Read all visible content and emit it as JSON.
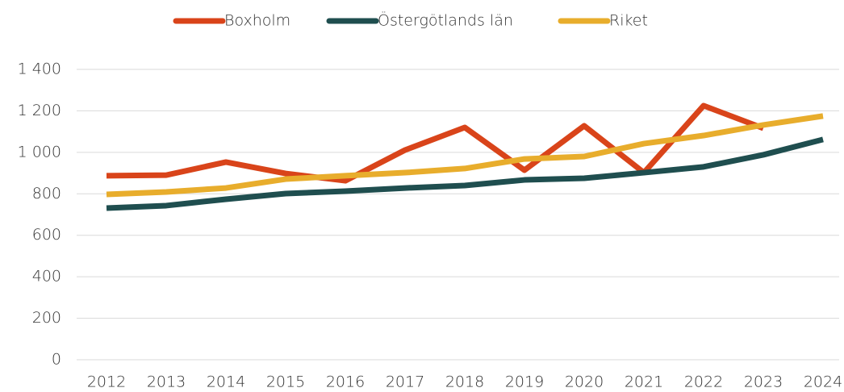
{
  "chart_data": {
    "type": "line",
    "x": [
      "2012",
      "2013",
      "2014",
      "2015",
      "2016",
      "2017",
      "2018",
      "2019",
      "2020",
      "2021",
      "2022",
      "2023",
      "2024"
    ],
    "series": [
      {
        "name": "Boxholm",
        "color": "#d9441a",
        "values": [
          887,
          890,
          953,
          898,
          863,
          1011,
          1120,
          914,
          1128,
          902,
          1225,
          1116,
          null
        ]
      },
      {
        "name": "Östergötlands län",
        "color": "#1f4e4f",
        "values": [
          731,
          743,
          774,
          801,
          813,
          828,
          840,
          867,
          875,
          902,
          930,
          988,
          1062
        ]
      },
      {
        "name": "Riket",
        "color": "#e8ad2c",
        "values": [
          797,
          809,
          828,
          871,
          887,
          902,
          922,
          968,
          980,
          1042,
          1081,
          1132,
          1175
        ]
      }
    ],
    "ylim": [
      0,
      1400
    ],
    "yticks": [
      0,
      200,
      400,
      600,
      800,
      {
        "value": 1000,
        "label": "1 000"
      },
      {
        "value": 1200,
        "label": "1 200"
      },
      {
        "value": 1400,
        "label": "1 400"
      }
    ],
    "grid": true,
    "legend": "top"
  }
}
